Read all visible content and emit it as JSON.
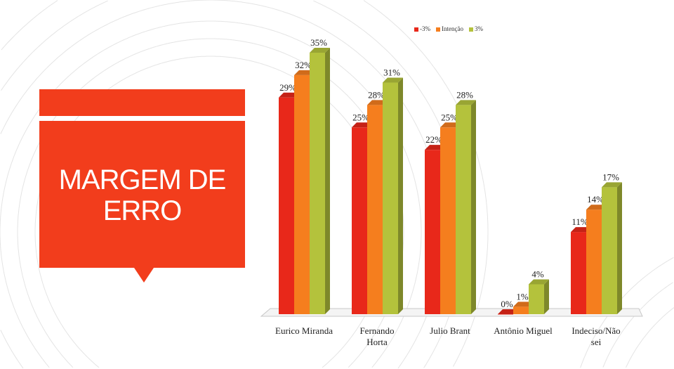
{
  "slide": {
    "title": "MARGEM DE ERRO",
    "title_lines": [
      "MARGEM DE",
      "ERRO"
    ],
    "accent": "#f23d1c"
  },
  "chart_data": {
    "type": "bar",
    "title": "",
    "categories": [
      "Eurico Miranda",
      "Fernando Horta",
      "Julio Brant",
      "Antônio Miguel",
      "Indeciso/Não sei"
    ],
    "category_lines": [
      [
        "Eurico Miranda"
      ],
      [
        "Fernando",
        "Horta"
      ],
      [
        "Julio Brant"
      ],
      [
        "Antônio Miguel"
      ],
      [
        "Indeciso/Não",
        "sei"
      ]
    ],
    "series": [
      {
        "name": "-3%",
        "color": "#e8281a",
        "values": [
          29,
          25,
          22,
          0,
          11
        ]
      },
      {
        "name": "Intenção",
        "color": "#f57e1e",
        "values": [
          32,
          28,
          25,
          1,
          14
        ]
      },
      {
        "name": "3%",
        "color": "#b4c23c",
        "values": [
          35,
          31,
          28,
          4,
          17
        ]
      }
    ],
    "value_suffix": "%",
    "legend_position": "top",
    "ylim": [
      0,
      35
    ],
    "grid": false
  }
}
